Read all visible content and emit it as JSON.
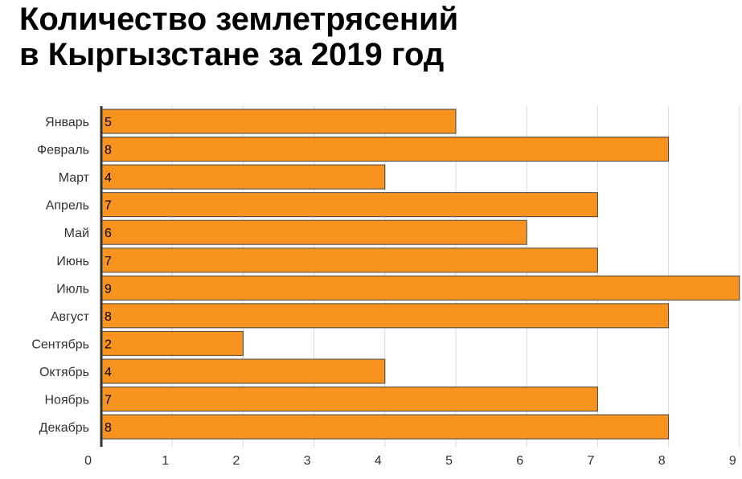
{
  "chart_data": {
    "type": "bar",
    "orientation": "horizontal",
    "title_lines": [
      "Количество землетрясений",
      "в Кыргызстане за 2019 год"
    ],
    "categories": [
      "Январь",
      "Февраль",
      "Март",
      "Апрель",
      "Май",
      "Июнь",
      "Июль",
      "Август",
      "Сентябрь",
      "Октябрь",
      "Ноябрь",
      "Декабрь"
    ],
    "values": [
      5,
      8,
      4,
      7,
      6,
      7,
      9,
      8,
      2,
      4,
      7,
      8
    ],
    "xticks": [
      "0",
      "1",
      "2",
      "3",
      "4",
      "5",
      "6",
      "7",
      "8",
      "9"
    ],
    "xlim": [
      0,
      9
    ],
    "xlabel": "",
    "ylabel": "",
    "grid": true,
    "data_labels": true,
    "colors": {
      "bar": "#f7931e",
      "bar_stroke": "#444444",
      "grid": "#d9d9d9",
      "axis": "#333333"
    }
  }
}
